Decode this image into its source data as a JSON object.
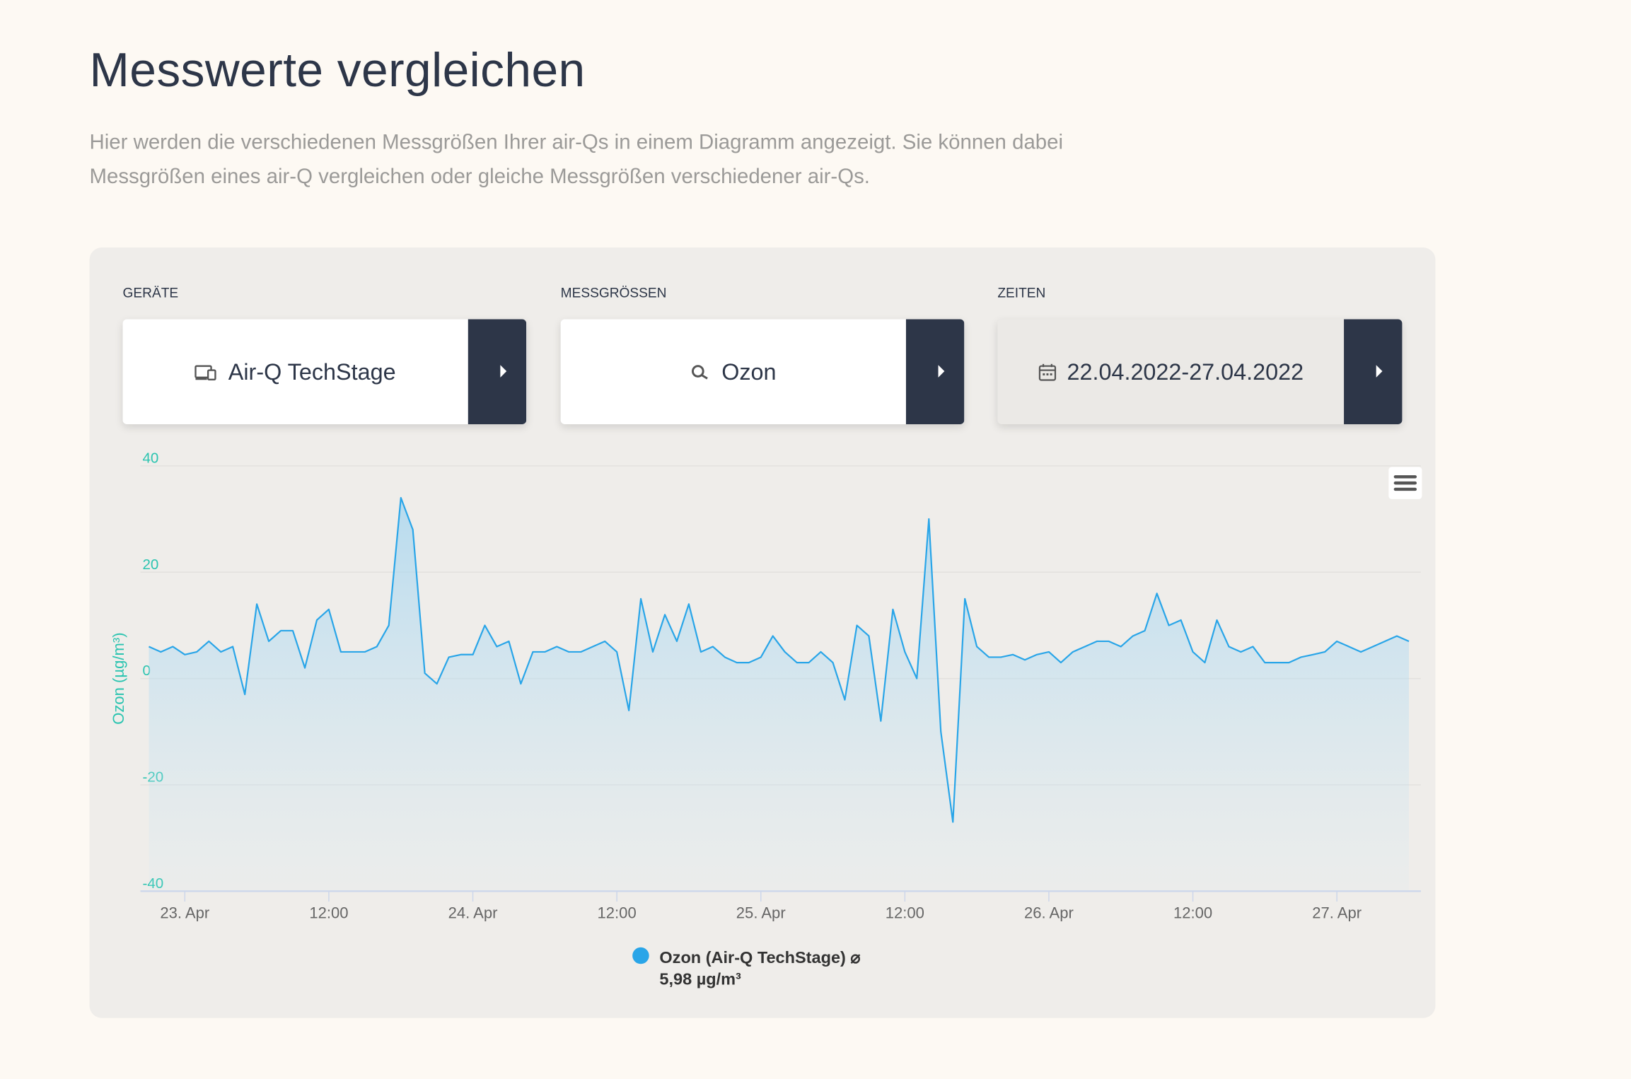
{
  "header": {
    "title": "Messwerte vergleichen",
    "description": "Hier werden die verschiedenen Messgrößen Ihrer air-Qs in einem Diagramm angezeigt. Sie können dabei Messgrößen eines air-Q vergleichen oder gleiche Messgrößen verschiedener air-Qs."
  },
  "filters": [
    {
      "label": "GERÄTE",
      "value": "Air-Q TechStage"
    },
    {
      "label": "MESSGRÖSSEN",
      "value": "Ozon"
    },
    {
      "label": "ZEITEN",
      "value": "22.04.2022-27.04.2022"
    }
  ],
  "chart_data": {
    "type": "area",
    "ylabel": "Ozon (µg/m³)",
    "x": [
      -3,
      -2,
      -1,
      0,
      1,
      2,
      3,
      4,
      5,
      6,
      7,
      8,
      9,
      10,
      11,
      12,
      13,
      14,
      15,
      16,
      17,
      18,
      19,
      20,
      21,
      22,
      23,
      24,
      25,
      26,
      27,
      28,
      29,
      30,
      31,
      32,
      33,
      34,
      35,
      36,
      37,
      38,
      39,
      40,
      41,
      42,
      43,
      44,
      45,
      46,
      47,
      48,
      49,
      50,
      51,
      52,
      53,
      54,
      55,
      56,
      57,
      58,
      59,
      60,
      61,
      62,
      63,
      64,
      65,
      66,
      67,
      68,
      69,
      70,
      71,
      72,
      73,
      74,
      75,
      76,
      77,
      78,
      79,
      80,
      81,
      82,
      83,
      84,
      85,
      86,
      87,
      88,
      89,
      90,
      91,
      92,
      93,
      94,
      95,
      96,
      97,
      98,
      99,
      100,
      101,
      102
    ],
    "series": [
      {
        "name": "Ozon (Air-Q TechStage) ⌀",
        "average": "5,98 µg/m³",
        "color": "#29a5e8",
        "values": [
          6,
          5,
          6,
          4.5,
          5,
          7,
          5,
          6,
          -3,
          14,
          7,
          9,
          9,
          2,
          11,
          13,
          5,
          5,
          5,
          6,
          10,
          34,
          28,
          1,
          -1,
          4,
          4.5,
          4.5,
          10,
          6,
          7,
          -1,
          5,
          5,
          6,
          5,
          5,
          6,
          7,
          5,
          -6,
          15,
          5,
          12,
          7,
          14,
          5,
          6,
          4,
          3,
          3,
          4,
          8,
          5,
          3,
          3,
          5,
          3,
          -4,
          10,
          8,
          -8,
          13,
          5,
          0,
          30,
          -10,
          -27,
          15,
          6,
          4,
          4,
          4.5,
          3.5,
          4.5,
          5,
          3,
          5,
          6,
          7,
          7,
          6,
          8,
          9,
          16,
          10,
          11,
          5,
          3,
          11,
          6,
          5,
          6,
          3,
          3,
          3,
          4,
          4.5,
          5,
          7,
          6,
          5,
          6,
          7,
          8,
          7
        ]
      }
    ],
    "xlim": [
      -3.7,
      103
    ],
    "xticks": [
      {
        "value": 0,
        "label": "23. Apr"
      },
      {
        "value": 12,
        "label": "12:00"
      },
      {
        "value": 24,
        "label": "24. Apr"
      },
      {
        "value": 36,
        "label": "12:00"
      },
      {
        "value": 48,
        "label": "25. Apr"
      },
      {
        "value": 60,
        "label": "12:00"
      },
      {
        "value": 72,
        "label": "26. Apr"
      },
      {
        "value": 84,
        "label": "12:00"
      },
      {
        "value": 96,
        "label": "27. Apr"
      }
    ],
    "ylim": [
      -40,
      40
    ],
    "yticks": [
      -40,
      -20,
      0,
      20,
      40
    ],
    "grid": true,
    "legend": "bottom"
  }
}
